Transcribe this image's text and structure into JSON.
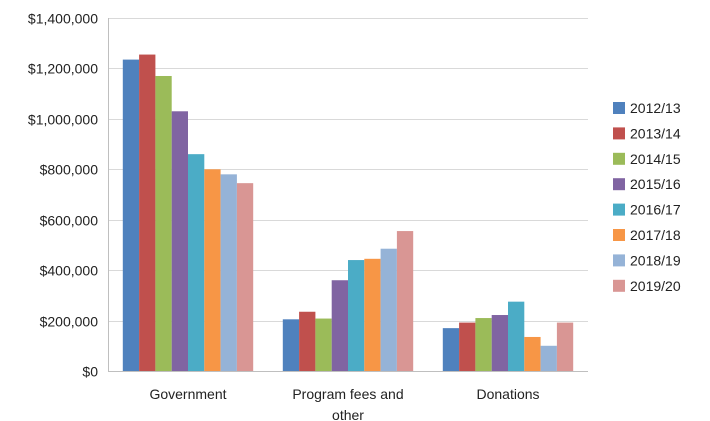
{
  "chart_data": {
    "type": "bar",
    "title": "",
    "xlabel": "",
    "ylabel": "",
    "categories": [
      "Government",
      "Program fees and\nother",
      "Donations"
    ],
    "ylim": [
      0,
      1400000
    ],
    "y_ticks": [
      0,
      200000,
      400000,
      600000,
      800000,
      1000000,
      1200000,
      1400000
    ],
    "y_tick_labels": [
      "$0",
      "$200,000",
      "$400,000",
      "$600,000",
      "$800,000",
      "$1,000,000",
      "$1,200,000",
      "$1,400,000"
    ],
    "grid": true,
    "legend_position": "right",
    "series": [
      {
        "name": "2012/13",
        "color": "#4f81bd",
        "values": [
          1235000,
          205000,
          170000
        ]
      },
      {
        "name": "2013/14",
        "color": "#c0504d",
        "values": [
          1255000,
          235000,
          192000
        ]
      },
      {
        "name": "2014/15",
        "color": "#9bbb59",
        "values": [
          1170000,
          208000,
          210000
        ]
      },
      {
        "name": "2015/16",
        "color": "#8064a2",
        "values": [
          1030000,
          360000,
          222000
        ]
      },
      {
        "name": "2016/17",
        "color": "#4bacc6",
        "values": [
          860000,
          440000,
          275000
        ]
      },
      {
        "name": "2017/18",
        "color": "#f79646",
        "values": [
          800000,
          445000,
          135000
        ]
      },
      {
        "name": "2018/19",
        "color": "#95b3d7",
        "values": [
          780000,
          485000,
          100000
        ]
      },
      {
        "name": "2019/20",
        "color": "#d99694",
        "values": [
          745000,
          555000,
          192000
        ]
      }
    ]
  }
}
